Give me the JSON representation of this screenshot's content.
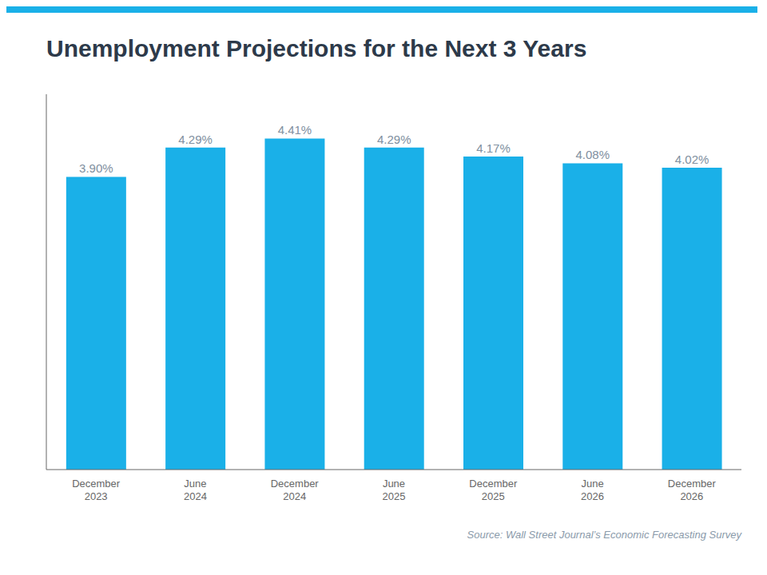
{
  "chart_data": {
    "type": "bar",
    "title": "Unemployment Projections for the Next 3 Years",
    "categories": [
      "December\n2023",
      "June\n2024",
      "December\n2024",
      "June\n2025",
      "December\n2025",
      "June\n2026",
      "December\n2026"
    ],
    "values": [
      3.9,
      4.29,
      4.41,
      4.29,
      4.17,
      4.08,
      4.02
    ],
    "value_labels": [
      "3.90%",
      "4.29%",
      "4.41%",
      "4.29%",
      "4.17%",
      "4.08%",
      "4.02%"
    ],
    "data_labels": true,
    "color": "#1ab0e8",
    "ylim": [
      0,
      5.0
    ],
    "tick_labels": "x",
    "grid": false,
    "annotations": [
      "Source: Wall Street Journal’s Economic Forecasting Survey"
    ]
  }
}
